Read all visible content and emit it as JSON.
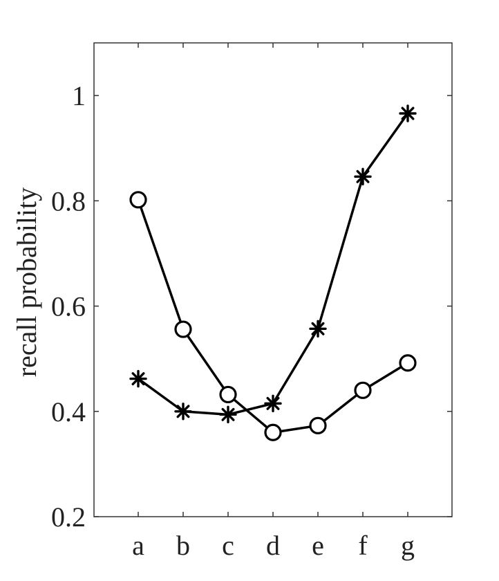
{
  "chart_data": {
    "type": "line",
    "title": "",
    "xlabel": "",
    "ylabel": "recall probability",
    "categories": [
      "a",
      "b",
      "c",
      "d",
      "e",
      "f",
      "g"
    ],
    "yticks": [
      "0.2",
      "0.4",
      "0.6",
      "0.8",
      "1"
    ],
    "ylim": [
      0.2,
      1.1
    ],
    "grid": false,
    "legend": "none",
    "series": [
      {
        "marker": "circle",
        "values": [
          0.802,
          0.556,
          0.432,
          0.36,
          0.373,
          0.44,
          0.492
        ]
      },
      {
        "marker": "asterisk",
        "values": [
          0.462,
          0.4,
          0.394,
          0.415,
          0.557,
          0.846,
          0.966
        ]
      }
    ],
    "colors": {
      "line": "#000000",
      "axis": "#333333",
      "text": "#222222"
    }
  }
}
